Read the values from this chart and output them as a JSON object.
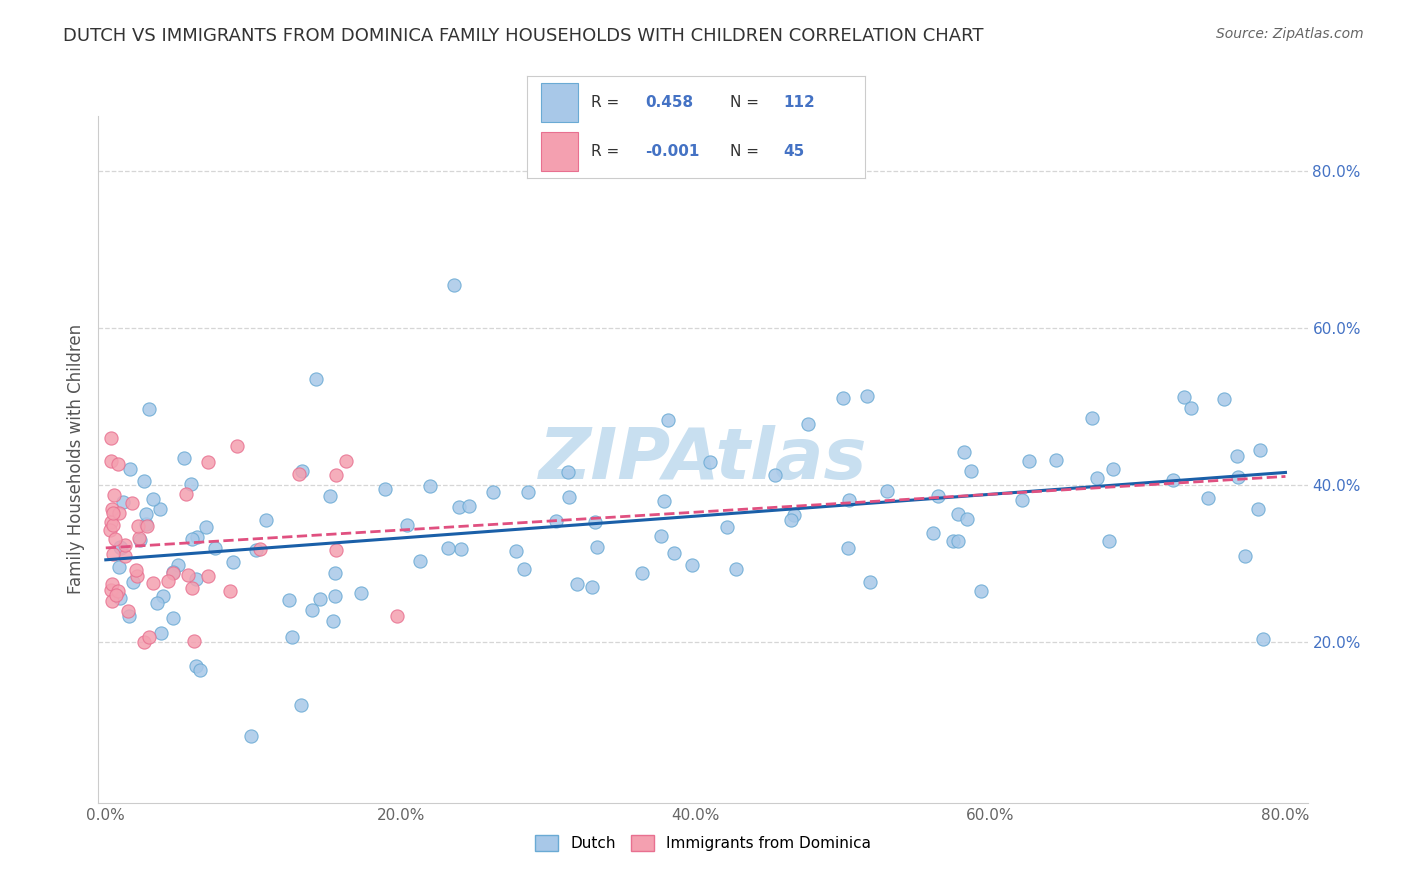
{
  "title": "DUTCH VS IMMIGRANTS FROM DOMINICA FAMILY HOUSEHOLDS WITH CHILDREN CORRELATION CHART",
  "source": "Source: ZipAtlas.com",
  "ylabel": "Family Households with Children",
  "R_blue": 0.458,
  "N_blue": 112,
  "R_pink": -0.001,
  "N_pink": 45,
  "blue_color": "#a8c8e8",
  "blue_edge_color": "#6aaad4",
  "pink_color": "#f4a0b0",
  "pink_edge_color": "#e87090",
  "blue_line_color": "#1a5fa8",
  "pink_line_color": "#e05080",
  "grid_color": "#cccccc",
  "background_color": "#ffffff",
  "title_color": "#333333",
  "source_color": "#666666",
  "ytick_color": "#4472c4",
  "xtick_color": "#666666",
  "watermark_text": "ZIPAtlas",
  "watermark_color": "#c8dff0",
  "legend_box_color": "#ffffff",
  "legend_border_color": "#cccccc",
  "legend_text_color": "#333333",
  "legend_value_color": "#4472c4"
}
